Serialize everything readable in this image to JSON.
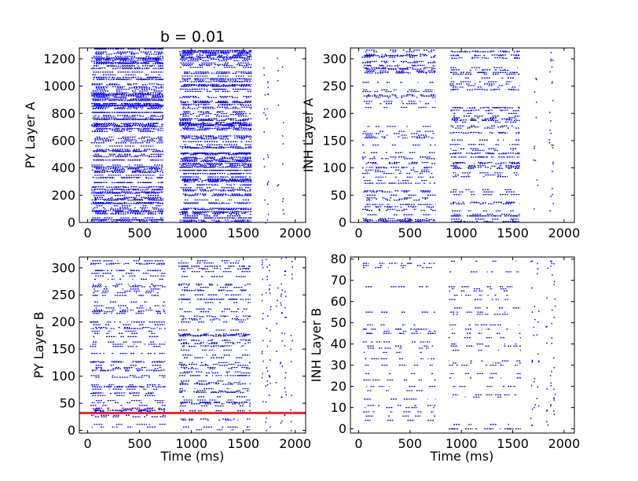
{
  "figure_title": "b = 0.01",
  "colors": {
    "spike": "#0000ff",
    "marker_line": "#ff0000",
    "axis": "#000000",
    "background": "#ffffff"
  },
  "chart_data": [
    {
      "type": "scatter",
      "name": "py-layer-a",
      "title": "b = 0.01",
      "xlabel": "",
      "ylabel": "PY Layer A",
      "xlim": [
        -80,
        2100
      ],
      "ylim": [
        0,
        1280
      ],
      "xticks": [
        0,
        500,
        1000,
        1500,
        2000
      ],
      "xtick_labels": [
        "0",
        "500",
        "1000",
        "1500",
        "2000"
      ],
      "yticks": [
        0,
        200,
        400,
        600,
        800,
        1000,
        1200
      ],
      "ytick_labels": [
        "0",
        "200",
        "400",
        "600",
        "800",
        "1000",
        "1200"
      ],
      "neurons": 1280,
      "bursts": [
        {
          "start": 30,
          "end": 730,
          "density": "high"
        },
        {
          "start": 880,
          "end": 1580,
          "density": "high"
        }
      ],
      "late_spike_times": [
        1700,
        1730,
        1830,
        1880
      ],
      "grid": false
    },
    {
      "type": "scatter",
      "name": "inh-layer-a",
      "title": "",
      "xlabel": "",
      "ylabel": "INH Layer A",
      "xlim": [
        -80,
        2100
      ],
      "ylim": [
        0,
        320
      ],
      "xticks": [
        0,
        500,
        1000,
        1500,
        2000
      ],
      "xtick_labels": [
        "0",
        "500",
        "1000",
        "1500",
        "2000"
      ],
      "yticks": [
        0,
        50,
        100,
        150,
        200,
        250,
        300
      ],
      "ytick_labels": [
        "0",
        "50",
        "100",
        "150",
        "200",
        "250",
        "300"
      ],
      "neurons": 320,
      "bursts": [
        {
          "start": 30,
          "end": 750,
          "density": "medium"
        },
        {
          "start": 880,
          "end": 1570,
          "density": "medium"
        }
      ],
      "late_spike_times": [
        1710,
        1730,
        1860,
        1880
      ],
      "grid": false
    },
    {
      "type": "scatter",
      "name": "py-layer-b",
      "title": "",
      "xlabel": "Time (ms)",
      "ylabel": "PY Layer B",
      "xlim": [
        -80,
        2100
      ],
      "ylim": [
        -5,
        320
      ],
      "xticks": [
        0,
        500,
        1000,
        1500,
        2000
      ],
      "xtick_labels": [
        "0",
        "500",
        "1000",
        "1500",
        "2000"
      ],
      "yticks": [
        0,
        50,
        100,
        150,
        200,
        250,
        300
      ],
      "ytick_labels": [
        "0",
        "50",
        "100",
        "150",
        "200",
        "250",
        "300"
      ],
      "neurons": 320,
      "bursts": [
        {
          "start": 20,
          "end": 750,
          "density": "medium"
        },
        {
          "start": 870,
          "end": 1570,
          "density": "medium"
        }
      ],
      "late_spike_times": [
        1680,
        1720,
        1750,
        1820,
        1860,
        1900,
        1960
      ],
      "marker_line_y": 32,
      "grid": false
    },
    {
      "type": "scatter",
      "name": "inh-layer-b",
      "title": "",
      "xlabel": "Time (ms)",
      "ylabel": "INH Layer B",
      "xlim": [
        -80,
        2100
      ],
      "ylim": [
        -2,
        81
      ],
      "xticks": [
        0,
        500,
        1000,
        1500,
        2000
      ],
      "xtick_labels": [
        "0",
        "500",
        "1000",
        "1500",
        "2000"
      ],
      "yticks": [
        0,
        10,
        20,
        30,
        40,
        50,
        60,
        70,
        80
      ],
      "ytick_labels": [
        "0",
        "10",
        "20",
        "30",
        "40",
        "50",
        "60",
        "70",
        "80"
      ],
      "neurons": 80,
      "bursts": [
        {
          "start": 30,
          "end": 750,
          "density": "low"
        },
        {
          "start": 870,
          "end": 1580,
          "density": "low"
        }
      ],
      "late_spike_times": [
        1680,
        1710,
        1740,
        1830,
        1870,
        1900
      ],
      "grid": false
    }
  ]
}
